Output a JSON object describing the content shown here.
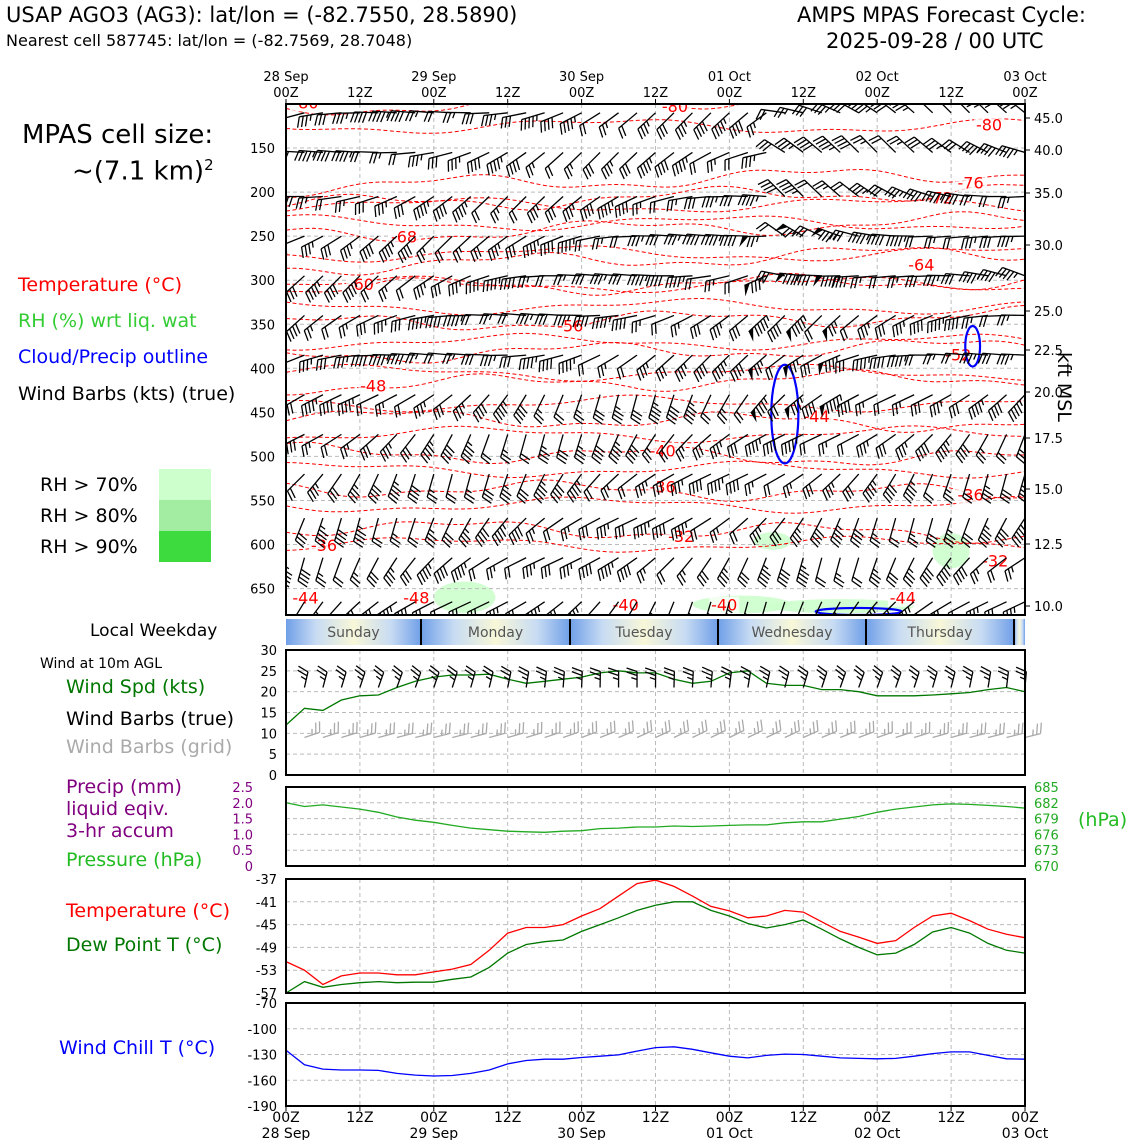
{
  "header": {
    "station": "USAP AGO3 (AG3): lat/lon = (-82.7550, 28.5890)",
    "nearest": "Nearest cell 587745: lat/lon = (-82.7569, 28.7048)",
    "cycle_title": "AMPS MPAS Forecast Cycle:",
    "cycle_date": "2025-09-28 / 00 UTC"
  },
  "cell_size": {
    "line1": "MPAS cell size:",
    "line2": "~(7.1 km)",
    "exp": "2"
  },
  "legend_main": {
    "temperature": "Temperature (°C)",
    "rh": "RH (%) wrt liq. wat",
    "cloud": "Cloud/Precip outline",
    "barbs": "Wind Barbs (kts) (true)"
  },
  "rh_legend": [
    {
      "label": "RH > 70%",
      "color": "#ccffcc"
    },
    {
      "label": "RH > 80%",
      "color": "#a3eda3"
    },
    {
      "label": "RH > 90%",
      "color": "#3ddb3d"
    }
  ],
  "colors": {
    "temp": "#ff0000",
    "rh": "#33cc33",
    "cloud": "#0000ff",
    "wind": "#007700",
    "grid_barb": "#aaaaaa",
    "precip": "#800080",
    "pressure": "#22aa22",
    "windchill": "#0000ff"
  },
  "time_axis": {
    "ticks": [
      "00Z",
      "12Z",
      "00Z",
      "12Z",
      "00Z",
      "12Z",
      "00Z",
      "12Z",
      "00Z",
      "12Z",
      "00Z"
    ],
    "dates": [
      "28 Sep",
      "",
      "29 Sep",
      "",
      "30 Sep",
      "",
      "01 Oct",
      "",
      "02 Oct",
      "",
      "03 Oct"
    ]
  },
  "weekday": {
    "title": "Local Weekday",
    "days": [
      "Sunday",
      "Monday",
      "Tuesday",
      "Wednesday",
      "Thursday"
    ]
  },
  "wind10": {
    "title": "Wind at 10m AGL",
    "spd_label": "Wind Spd (kts)",
    "barbs_true": "Wind Barbs (true)",
    "barbs_grid": "Wind Barbs (grid)"
  },
  "precip_panel": {
    "l1": "Precip (mm)",
    "l2": "liquid eqiv.",
    "l3": "3-hr accum",
    "pressure_label": "Pressure (hPa)",
    "unit": "(hPa)"
  },
  "temp_panel": {
    "temp_label": "Temperature (°C)",
    "dew_label": "Dew Point T (°C)"
  },
  "windchill_panel": {
    "label": "Wind Chill T (°C)"
  },
  "chart_data": [
    {
      "type": "contour",
      "name": "upper-air cross section",
      "x_hours": [
        0,
        120
      ],
      "y_pressure_ticks": [
        150,
        200,
        250,
        300,
        350,
        400,
        450,
        500,
        550,
        600,
        650
      ],
      "ylim_hpa": [
        100,
        680
      ],
      "right_axis_label": "kft MSL",
      "right_ticks_kft": [
        "45.0",
        "40.0",
        "35.0",
        "30.0",
        "25.0",
        "22.5",
        "20.0",
        "17.5",
        "15.0",
        "12.5",
        "10.0"
      ],
      "temperature_contours": [
        {
          "level": -80,
          "label": "-80",
          "base_hpa": 105
        },
        {
          "level": -76,
          "label": "-76",
          "base_hpa": 195
        },
        {
          "level": -72,
          "label": "-72",
          "base_hpa": 215
        },
        {
          "level": -68,
          "label": "-68",
          "base_hpa": 250
        },
        {
          "level": -64,
          "label": "-64",
          "base_hpa": 285
        },
        {
          "level": -60,
          "label": "-60",
          "base_hpa": 310
        },
        {
          "level": -56,
          "label": "-56",
          "base_hpa": 350
        },
        {
          "level": -52,
          "label": "-52",
          "base_hpa": 385
        },
        {
          "level": -48,
          "label": "-48",
          "base_hpa": 420
        },
        {
          "level": -44,
          "label": "-44",
          "base_hpa": 455
        },
        {
          "level": -40,
          "label": "-40",
          "base_hpa": 495
        },
        {
          "level": -36,
          "label": "-36",
          "base_hpa": 535
        },
        {
          "level": -32,
          "label": "-32",
          "base_hpa": 580
        }
      ],
      "contour_labels": [
        {
          "t": 3,
          "p": 104,
          "text": "-80"
        },
        {
          "t": 63,
          "p": 108,
          "text": "-80"
        },
        {
          "t": 114,
          "p": 129,
          "text": "-80"
        },
        {
          "t": 111,
          "p": 195,
          "text": "-76"
        },
        {
          "t": 106,
          "p": 212,
          "text": "-72"
        },
        {
          "t": 19,
          "p": 256,
          "text": "-68"
        },
        {
          "t": 103,
          "p": 288,
          "text": "-64"
        },
        {
          "t": 12,
          "p": 310,
          "text": "-60"
        },
        {
          "t": 46,
          "p": 357,
          "text": "-56"
        },
        {
          "t": 109,
          "p": 390,
          "text": "-52"
        },
        {
          "t": 14,
          "p": 425,
          "text": "-48"
        },
        {
          "t": 86,
          "p": 460,
          "text": "-44"
        },
        {
          "t": 61,
          "p": 499,
          "text": "-40"
        },
        {
          "t": 61,
          "p": 540,
          "text": "-36"
        },
        {
          "t": 111,
          "p": 549,
          "text": "-36"
        },
        {
          "t": 64,
          "p": 596,
          "text": "-32"
        },
        {
          "t": 115,
          "p": 624,
          "text": "-32"
        },
        {
          "t": 6,
          "p": 606,
          "text": "-36"
        },
        {
          "t": 3,
          "p": 666,
          "text": "-44"
        },
        {
          "t": 21,
          "p": 666,
          "text": "-48"
        },
        {
          "t": 55,
          "p": 674,
          "text": "-40"
        },
        {
          "t": 71,
          "p": 674,
          "text": "-40"
        },
        {
          "t": 100,
          "p": 666,
          "text": "-44"
        }
      ],
      "rh_patches": [
        {
          "t": 29,
          "p": 660,
          "rt": 5,
          "rp": 18,
          "level": 70
        },
        {
          "t": 74,
          "p": 668,
          "rt": 8,
          "rp": 10,
          "level": 70
        },
        {
          "t": 90,
          "p": 670,
          "rt": 12,
          "rp": 8,
          "level": 70
        },
        {
          "t": 108,
          "p": 607,
          "rt": 3,
          "rp": 20,
          "level": 70
        },
        {
          "t": 79,
          "p": 596,
          "rt": 3,
          "rp": 10,
          "level": 70
        }
      ],
      "cloud_outlines": [
        {
          "t": 81,
          "p": 452,
          "rt": 2.2,
          "rp": 56
        },
        {
          "t": 111.5,
          "p": 375,
          "rt": 1.2,
          "rp": 23
        },
        {
          "t": 93,
          "p": 676,
          "rt": 7,
          "rp": 4
        }
      ],
      "barb_levels_hpa": [
        110,
        155,
        205,
        250,
        295,
        340,
        385,
        430,
        475,
        520,
        570,
        615,
        665
      ],
      "barb_interval_hr": 3
    },
    {
      "type": "line",
      "name": "10m wind speed",
      "x_hours": [
        0,
        3,
        6,
        9,
        12,
        15,
        18,
        21,
        24,
        27,
        30,
        33,
        36,
        39,
        42,
        45,
        48,
        51,
        54,
        57,
        60,
        63,
        66,
        69,
        72,
        75,
        78,
        81,
        84,
        87,
        90,
        93,
        96,
        99,
        102,
        105,
        108,
        111,
        114,
        117,
        120
      ],
      "values": [
        12,
        16,
        15.5,
        18,
        19,
        19.2,
        21,
        22.5,
        23.5,
        24,
        24,
        24.2,
        23,
        22,
        22.5,
        23,
        23.5,
        24.5,
        25,
        24.5,
        24.5,
        23,
        22,
        22.5,
        24.5,
        25,
        22,
        21.5,
        21.5,
        20.5,
        20.5,
        20,
        19,
        19,
        19,
        19.2,
        19.5,
        19.8,
        20.5,
        21,
        20
      ],
      "ylim": [
        0,
        30
      ],
      "yticks": [
        0,
        5,
        10,
        15,
        20,
        25,
        30
      ],
      "barb_speed_kts": 25
    },
    {
      "type": "line",
      "name": "pressure and precip",
      "x_hours": [
        0,
        3,
        6,
        9,
        12,
        15,
        18,
        21,
        24,
        27,
        30,
        33,
        36,
        39,
        42,
        45,
        48,
        51,
        54,
        57,
        60,
        63,
        66,
        69,
        72,
        75,
        78,
        81,
        84,
        87,
        90,
        93,
        96,
        99,
        102,
        105,
        108,
        111,
        114,
        117,
        120
      ],
      "pressure_hpa": [
        682,
        681.3,
        681.6,
        681.2,
        680.8,
        680.2,
        679.3,
        678.7,
        678.3,
        677.7,
        677.2,
        676.9,
        676.6,
        676.5,
        676.4,
        676.6,
        676.7,
        677.1,
        677.2,
        677.4,
        677.4,
        677.6,
        677.5,
        677.6,
        677.7,
        677.8,
        677.8,
        678.2,
        678.4,
        678.4,
        678.9,
        679.4,
        680.2,
        680.8,
        681.2,
        681.6,
        681.8,
        681.7,
        681.5,
        681.3,
        681
      ],
      "precip_mm": [
        0,
        0,
        0,
        0,
        0,
        0,
        0,
        0,
        0,
        0,
        0,
        0,
        0,
        0,
        0,
        0,
        0,
        0,
        0,
        0,
        0,
        0,
        0,
        0,
        0,
        0,
        0,
        0,
        0,
        0,
        0,
        0,
        0,
        0,
        0,
        0,
        0,
        0,
        0,
        0,
        0
      ],
      "precip_ylim": [
        0,
        2.5
      ],
      "precip_ticks": [
        "2.5",
        "2.0",
        "1.5",
        "1.0",
        "0.5",
        "0"
      ],
      "pressure_ylim": [
        670,
        685
      ],
      "pressure_ticks": [
        "685",
        "682",
        "679",
        "676",
        "673",
        "670"
      ]
    },
    {
      "type": "line",
      "name": "temperature and dew point",
      "x_hours": [
        0,
        3,
        6,
        9,
        12,
        15,
        18,
        21,
        24,
        27,
        30,
        33,
        36,
        39,
        42,
        45,
        48,
        51,
        54,
        57,
        60,
        63,
        66,
        69,
        72,
        75,
        78,
        81,
        84,
        87,
        90,
        93,
        96,
        99,
        102,
        105,
        108,
        111,
        114,
        117,
        120
      ],
      "temperature_c": [
        -51.5,
        -53,
        -55.5,
        -54,
        -53.5,
        -53.5,
        -53.8,
        -53.8,
        -53.3,
        -52.8,
        -52,
        -49.5,
        -46.5,
        -45.5,
        -45.5,
        -45,
        -43.5,
        -42.2,
        -40,
        -37.8,
        -37.2,
        -38.3,
        -40,
        -41.8,
        -42.6,
        -43.8,
        -43.5,
        -42.5,
        -42.8,
        -44.5,
        -46.2,
        -47.2,
        -48.3,
        -47.8,
        -45.5,
        -43.5,
        -43,
        -44.3,
        -45.8,
        -46.7,
        -47.3
      ],
      "dewpoint_c": [
        -57,
        -55,
        -56,
        -55.5,
        -55.2,
        -55,
        -55.2,
        -55.1,
        -55.1,
        -54.6,
        -54.2,
        -52.5,
        -50,
        -48.5,
        -48,
        -47.7,
        -46.2,
        -45,
        -43.8,
        -42.5,
        -41.6,
        -41,
        -41,
        -42.5,
        -43.5,
        -44.8,
        -45.6,
        -45,
        -44.2,
        -45.8,
        -47.5,
        -49,
        -50.3,
        -50,
        -48.5,
        -46.3,
        -45.5,
        -46.5,
        -48.3,
        -49.5,
        -50
      ],
      "ylim": [
        -57,
        -37
      ],
      "yticks": [
        "-37",
        "-41",
        "-45",
        "-49",
        "-53",
        "-57"
      ]
    },
    {
      "type": "line",
      "name": "wind chill",
      "x_hours": [
        0,
        3,
        6,
        9,
        12,
        15,
        18,
        21,
        24,
        27,
        30,
        33,
        36,
        39,
        42,
        45,
        48,
        51,
        54,
        57,
        60,
        63,
        66,
        69,
        72,
        75,
        78,
        81,
        84,
        87,
        90,
        93,
        96,
        99,
        102,
        105,
        108,
        111,
        114,
        117,
        120
      ],
      "windchill_c": [
        -125,
        -142,
        -147,
        -148,
        -148,
        -148.5,
        -152,
        -154,
        -155,
        -154.5,
        -152,
        -148,
        -141,
        -137,
        -135.5,
        -135.5,
        -133.5,
        -132,
        -130.5,
        -126,
        -122,
        -121,
        -124,
        -128,
        -132,
        -134,
        -131,
        -129.5,
        -130,
        -132,
        -134,
        -134.5,
        -135,
        -134.5,
        -132,
        -129,
        -127,
        -127,
        -131,
        -135,
        -135.5
      ],
      "ylim": [
        -190,
        -70
      ],
      "yticks": [
        "-70",
        "-100",
        "-130",
        "-160",
        "-190"
      ]
    }
  ]
}
